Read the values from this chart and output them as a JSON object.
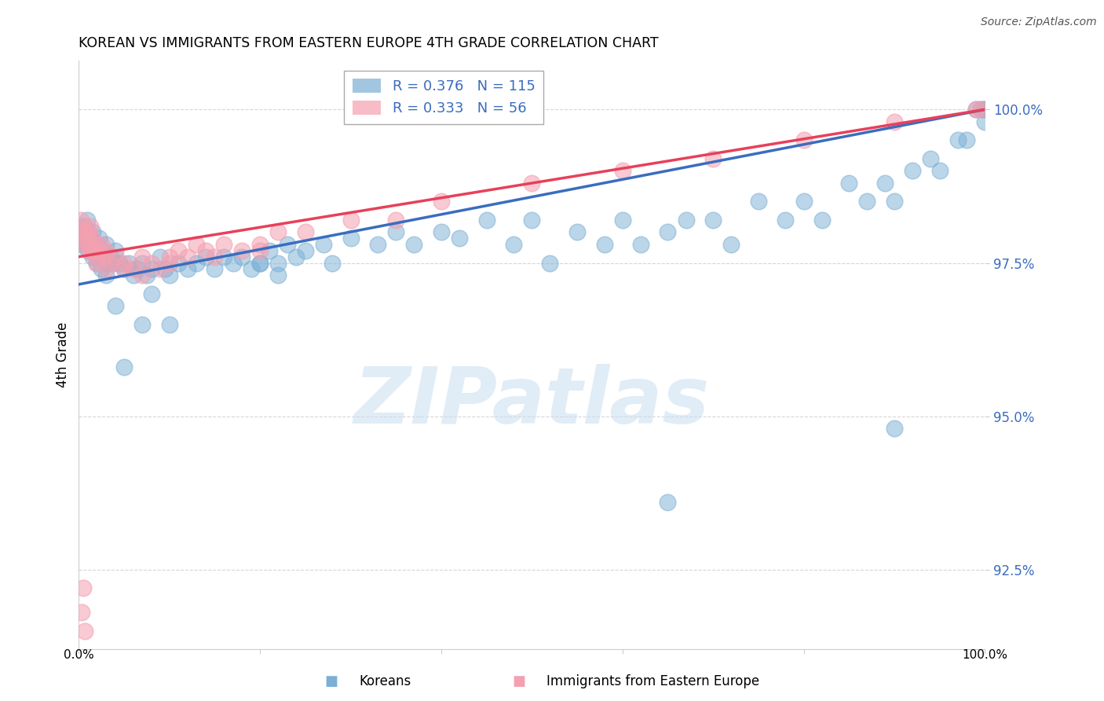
{
  "title": "KOREAN VS IMMIGRANTS FROM EASTERN EUROPE 4TH GRADE CORRELATION CHART",
  "source": "Source: ZipAtlas.com",
  "ylabel": "4th Grade",
  "xlim": [
    0.0,
    100.0
  ],
  "ylim": [
    91.2,
    100.8
  ],
  "yticks": [
    92.5,
    95.0,
    97.5,
    100.0
  ],
  "ytick_labels": [
    "92.5%",
    "95.0%",
    "97.5%",
    "100.0%"
  ],
  "xtick_labels": [
    "0.0%",
    "100.0%"
  ],
  "grid_color": "#cccccc",
  "background_color": "#ffffff",
  "blue_color": "#7bafd4",
  "pink_color": "#f4a0b0",
  "blue_line_color": "#3a6dbf",
  "pink_line_color": "#e8405a",
  "blue_text_color": "#3a6dbf",
  "R_blue": 0.376,
  "N_blue": 115,
  "R_pink": 0.333,
  "N_pink": 56,
  "watermark_text": "ZIPatlas",
  "legend_label_blue": "Koreans",
  "legend_label_pink": "Immigrants from Eastern Europe",
  "blue_line_start_y": 97.15,
  "blue_line_end_y": 100.0,
  "pink_line_start_y": 97.6,
  "pink_line_end_y": 100.0,
  "blue_points_x": [
    0.3,
    0.5,
    0.6,
    0.8,
    0.9,
    1.0,
    1.1,
    1.2,
    1.3,
    1.5,
    1.6,
    1.8,
    2.0,
    2.2,
    2.5,
    2.8,
    3.0,
    3.2,
    3.5,
    3.8,
    4.0,
    4.5,
    5.0,
    5.5,
    6.0,
    6.5,
    7.0,
    7.5,
    8.0,
    9.0,
    9.5,
    10.0,
    11.0,
    12.0,
    13.0,
    14.0,
    15.0,
    16.0,
    17.0,
    18.0,
    19.0,
    20.0,
    21.0,
    22.0,
    23.0,
    24.0,
    25.0,
    27.0,
    28.0,
    30.0,
    33.0,
    35.0,
    37.0,
    40.0,
    42.0,
    45.0,
    48.0,
    50.0,
    52.0,
    55.0,
    58.0,
    60.0,
    62.0,
    65.0,
    67.0,
    70.0,
    72.0,
    75.0,
    78.0,
    80.0,
    82.0,
    85.0,
    87.0,
    89.0,
    90.0,
    92.0,
    94.0,
    95.0,
    97.0,
    98.0,
    99.0,
    99.5,
    100.0,
    100.0,
    100.0,
    4.0,
    5.0,
    7.0,
    8.0,
    10.0,
    0.4,
    0.7,
    1.0,
    1.5,
    2.0,
    2.5,
    3.0,
    20.0,
    22.0,
    65.0,
    90.0
  ],
  "blue_points_y": [
    98.0,
    97.9,
    98.1,
    97.8,
    98.2,
    97.9,
    98.0,
    97.8,
    97.9,
    98.0,
    97.7,
    97.8,
    97.6,
    97.9,
    97.7,
    97.6,
    97.8,
    97.5,
    97.6,
    97.5,
    97.7,
    97.5,
    97.4,
    97.5,
    97.3,
    97.4,
    97.5,
    97.3,
    97.4,
    97.6,
    97.4,
    97.3,
    97.5,
    97.4,
    97.5,
    97.6,
    97.4,
    97.6,
    97.5,
    97.6,
    97.4,
    97.5,
    97.7,
    97.5,
    97.8,
    97.6,
    97.7,
    97.8,
    97.5,
    97.9,
    97.8,
    98.0,
    97.8,
    98.0,
    97.9,
    98.2,
    97.8,
    98.2,
    97.5,
    98.0,
    97.8,
    98.2,
    97.8,
    98.0,
    98.2,
    98.2,
    97.8,
    98.5,
    98.2,
    98.5,
    98.2,
    98.8,
    98.5,
    98.8,
    98.5,
    99.0,
    99.2,
    99.0,
    99.5,
    99.5,
    100.0,
    100.0,
    100.0,
    99.8,
    100.0,
    96.8,
    95.8,
    96.5,
    97.0,
    96.5,
    97.8,
    97.9,
    97.7,
    97.6,
    97.5,
    97.4,
    97.3,
    97.5,
    97.3,
    93.6,
    94.8
  ],
  "pink_points_x": [
    0.2,
    0.4,
    0.5,
    0.6,
    0.7,
    0.8,
    0.9,
    1.0,
    1.1,
    1.2,
    1.3,
    1.4,
    1.5,
    1.6,
    1.8,
    2.0,
    2.2,
    2.5,
    2.8,
    3.0,
    3.5,
    4.0,
    5.0,
    6.0,
    7.0,
    8.0,
    9.0,
    10.0,
    11.0,
    12.0,
    13.0,
    14.0,
    16.0,
    18.0,
    20.0,
    22.0,
    25.0,
    30.0,
    35.0,
    40.0,
    50.0,
    60.0,
    70.0,
    80.0,
    90.0,
    99.0,
    99.5,
    2.0,
    3.0,
    5.0,
    7.0,
    10.0,
    15.0,
    20.0,
    0.3,
    0.5,
    0.7
  ],
  "pink_points_y": [
    98.2,
    98.0,
    97.9,
    98.1,
    97.8,
    98.0,
    97.9,
    97.8,
    98.0,
    97.7,
    98.1,
    97.9,
    97.8,
    97.7,
    97.8,
    97.6,
    97.7,
    97.8,
    97.6,
    97.7,
    97.5,
    97.6,
    97.5,
    97.4,
    97.6,
    97.5,
    97.4,
    97.6,
    97.7,
    97.6,
    97.8,
    97.7,
    97.8,
    97.7,
    97.8,
    98.0,
    98.0,
    98.2,
    98.2,
    98.5,
    98.8,
    99.0,
    99.2,
    99.5,
    99.8,
    100.0,
    100.0,
    97.5,
    97.4,
    97.4,
    97.3,
    97.5,
    97.6,
    97.7,
    91.8,
    92.2,
    91.5
  ]
}
